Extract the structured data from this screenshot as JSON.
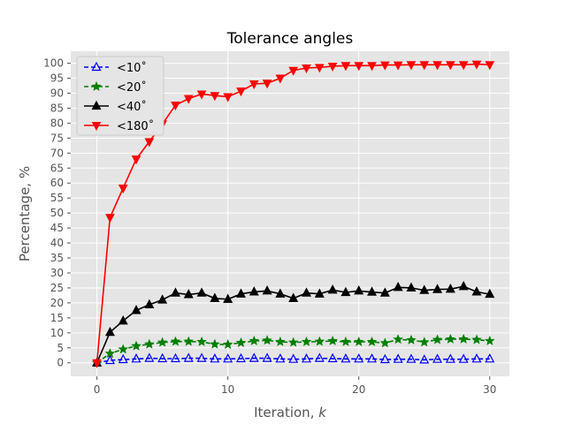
{
  "chart_data": {
    "type": "line",
    "title": "Tolerance angles",
    "xlabel": "Iteration, ",
    "xlabel_var": "k",
    "ylabel": "Percentage, %",
    "xlim": [
      -2,
      31.5
    ],
    "ylim": [
      -4.5,
      104
    ],
    "grid": true,
    "legend_position": "top-left",
    "x_ticks": [
      0,
      10,
      20,
      30
    ],
    "y_ticks": [
      0,
      5,
      10,
      15,
      20,
      25,
      30,
      35,
      40,
      45,
      50,
      55,
      60,
      65,
      70,
      75,
      80,
      85,
      90,
      95,
      100
    ],
    "x": [
      0,
      1,
      2,
      3,
      4,
      5,
      6,
      7,
      8,
      9,
      10,
      11,
      12,
      13,
      14,
      15,
      16,
      17,
      18,
      19,
      20,
      21,
      22,
      23,
      24,
      25,
      26,
      27,
      28,
      29,
      30
    ],
    "series": [
      {
        "name": "<10˚",
        "color": "#0000ff",
        "style": "dashed",
        "marker": "triangle-up-open",
        "values": [
          0,
          0.8,
          1.1,
          1.3,
          1.5,
          1.4,
          1.4,
          1.5,
          1.5,
          1.3,
          1.3,
          1.4,
          1.5,
          1.5,
          1.3,
          1.2,
          1.3,
          1.5,
          1.4,
          1.3,
          1.3,
          1.3,
          1.1,
          1.2,
          1.2,
          1.0,
          1.2,
          1.2,
          1.2,
          1.3,
          1.3
        ]
      },
      {
        "name": "<20˚",
        "color": "#008000",
        "style": "dashed",
        "marker": "star",
        "values": [
          0,
          3.1,
          4.5,
          5.6,
          6.2,
          6.8,
          7.1,
          7.1,
          7.0,
          6.2,
          6.1,
          6.7,
          7.3,
          7.5,
          7.0,
          6.8,
          7.0,
          7.1,
          7.3,
          7.0,
          7.0,
          7.0,
          6.6,
          7.8,
          7.6,
          6.9,
          7.7,
          7.9,
          7.9,
          7.7,
          7.3
        ]
      },
      {
        "name": "<40˚",
        "color": "#000000",
        "style": "solid",
        "marker": "triangle-up",
        "values": [
          0,
          10.2,
          14.0,
          17.5,
          19.4,
          21.0,
          23.3,
          22.8,
          23.3,
          21.5,
          21.2,
          23.0,
          23.7,
          24.0,
          23.0,
          21.5,
          23.3,
          23.0,
          24.3,
          23.5,
          24.0,
          23.6,
          23.3,
          25.2,
          25.0,
          24.2,
          24.5,
          24.6,
          25.5,
          23.7,
          22.9
        ]
      },
      {
        "name": "<180˚",
        "color": "#ff0000",
        "style": "solid",
        "marker": "triangle-down",
        "values": [
          0,
          48.5,
          58.3,
          68.0,
          73.8,
          79.7,
          86.0,
          88.2,
          89.7,
          89.2,
          88.8,
          90.7,
          93.1,
          93.3,
          95.0,
          97.6,
          98.4,
          98.6,
          99.0,
          99.2,
          99.2,
          99.2,
          99.4,
          99.4,
          99.5,
          99.5,
          99.5,
          99.5,
          99.5,
          99.7,
          99.5
        ]
      }
    ]
  }
}
